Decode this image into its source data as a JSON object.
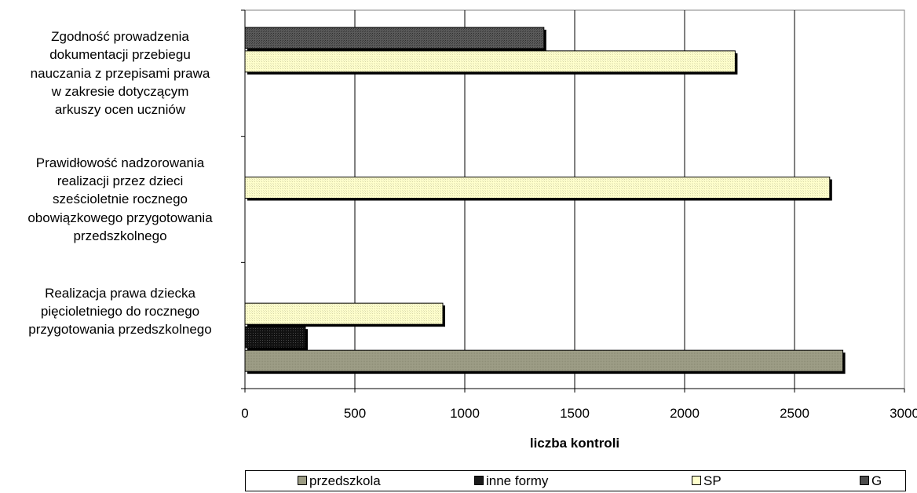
{
  "chart_data": {
    "type": "bar",
    "orientation": "horizontal",
    "categories": [
      "Zgodność prowadzenia\ndokumentacji przebiegu\nnauczania z przepisami prawa\nw zakresie dotyczącym\narkuszy ocen uczniów",
      "Prawidłowość nadzorowania\nrealizacji przez dzieci\nsześcioletnie rocznego\nobowiązkowego przygotowania\nprzedszkolnego",
      "Realizacja prawa dziecka\npięcioletniego do rocznego\nprzygotowania przedszkolnego"
    ],
    "series": [
      {
        "name": "przedszkola",
        "color": "#9c9c84",
        "values": [
          null,
          null,
          2720
        ]
      },
      {
        "name": "inne formy",
        "color": "#1a1a1a",
        "values": [
          null,
          null,
          275
        ]
      },
      {
        "name": "SP",
        "color": "#ffffcc",
        "values": [
          2230,
          2660,
          900
        ]
      },
      {
        "name": "G",
        "color": "#4d4d4d",
        "values": [
          1360,
          null,
          null
        ]
      }
    ],
    "xlabel": "liczba kontroli",
    "xlim": [
      0,
      3000
    ],
    "xticks": [
      "0",
      "500",
      "1000",
      "1500",
      "2000",
      "2500",
      "3000"
    ],
    "grid": "vertical",
    "legend_position": "bottom"
  }
}
